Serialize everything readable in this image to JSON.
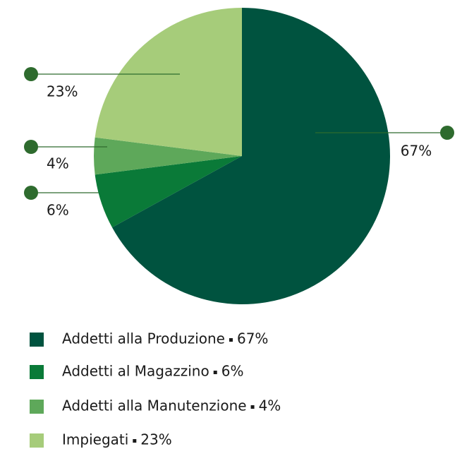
{
  "chart_data": {
    "type": "pie",
    "categories": [
      "Addetti alla Produzione",
      "Addetti al Magazzino",
      "Addetti alla Manutenzione",
      "Impiegati"
    ],
    "values": [
      67,
      6,
      4,
      23
    ],
    "value_labels": [
      "67%",
      "6%",
      "4%",
      "23%"
    ],
    "colors": [
      "#00533f",
      "#0a7a38",
      "#5ea85a",
      "#a6cc7a"
    ]
  }
}
